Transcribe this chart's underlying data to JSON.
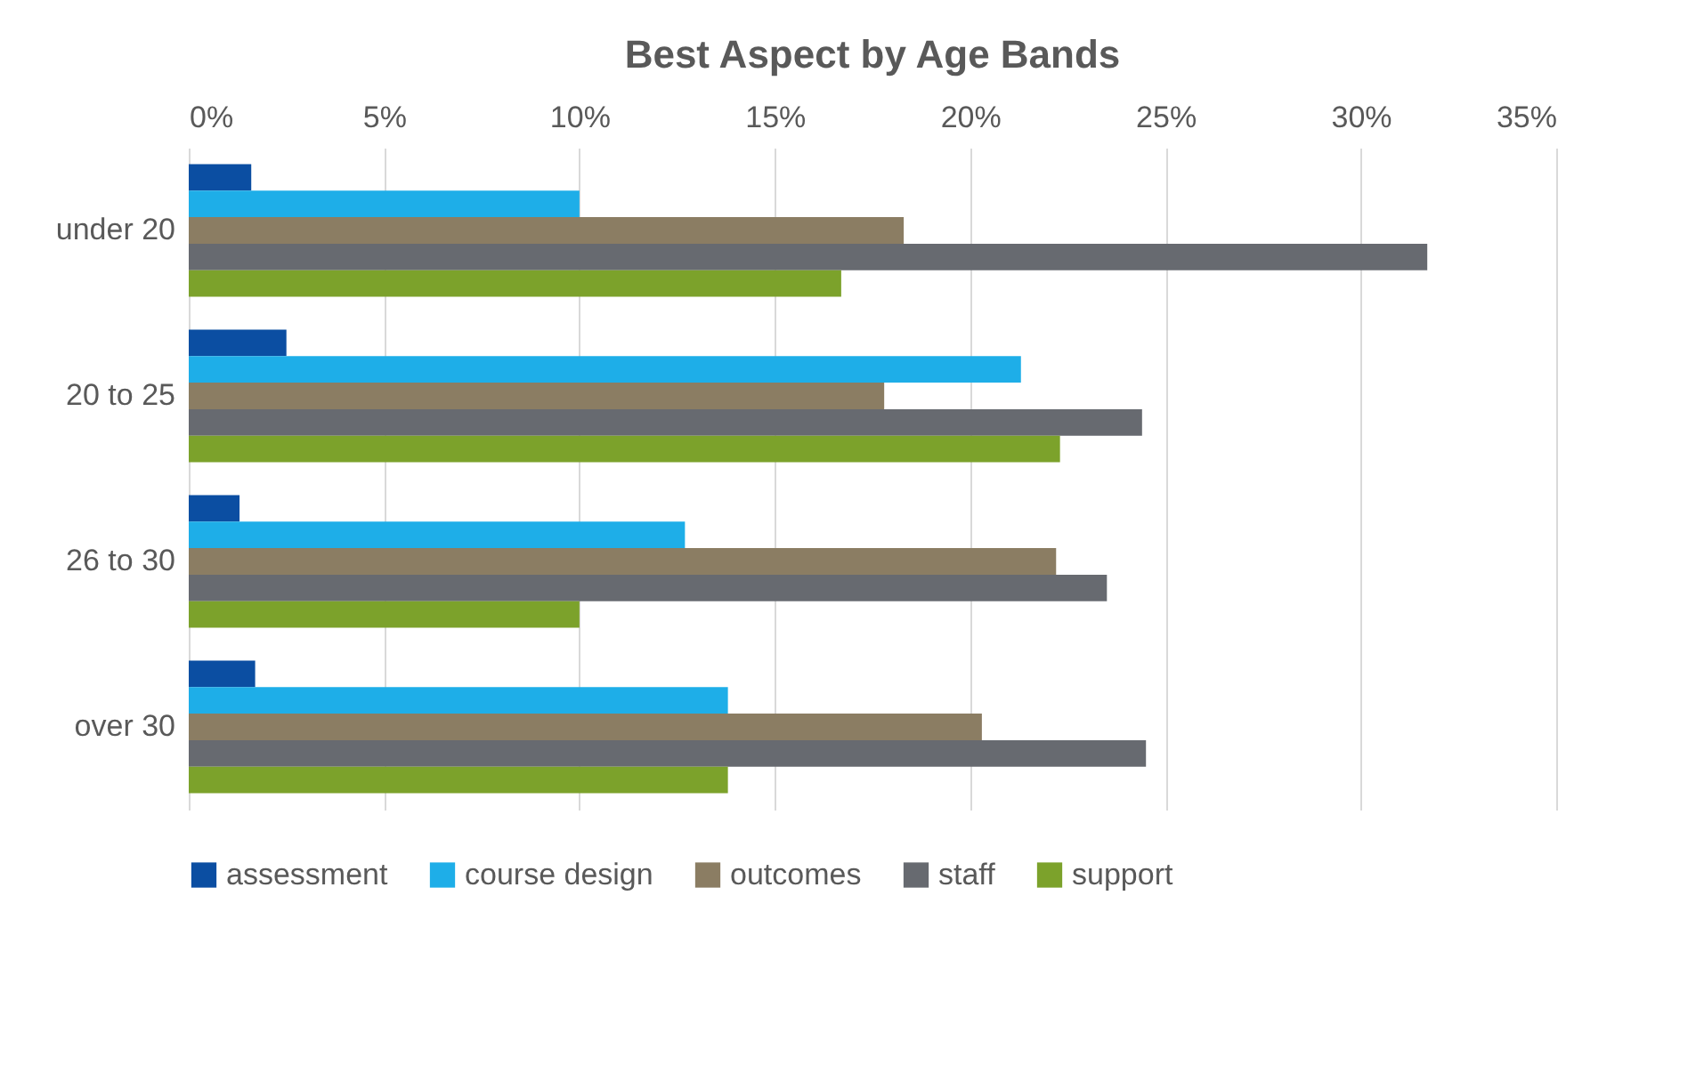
{
  "chart_data": {
    "type": "bar",
    "orientation": "horizontal",
    "title": "Best Aspect by Age Bands",
    "categories": [
      "under 20",
      "20 to 25",
      "26 to 30",
      "over 30"
    ],
    "series": [
      {
        "name": "assessment",
        "color": "#0b4ea2",
        "values": [
          1.6,
          2.5,
          1.3,
          1.7
        ]
      },
      {
        "name": "course design",
        "color": "#1eaee8",
        "values": [
          10.0,
          21.3,
          12.7,
          13.8
        ]
      },
      {
        "name": "outcomes",
        "color": "#8b7d63",
        "values": [
          18.3,
          17.8,
          22.2,
          20.3
        ]
      },
      {
        "name": "staff",
        "color": "#676a70",
        "values": [
          31.7,
          24.4,
          23.5,
          24.5
        ]
      },
      {
        "name": "support",
        "color": "#7ca22b",
        "values": [
          16.7,
          22.3,
          10.0,
          13.8
        ]
      }
    ],
    "xlim": [
      0,
      35
    ],
    "xticks": [
      {
        "value": 0,
        "label": "0%"
      },
      {
        "value": 5,
        "label": "5%"
      },
      {
        "value": 10,
        "label": "10%"
      },
      {
        "value": 15,
        "label": "15%"
      },
      {
        "value": 20,
        "label": "20%"
      },
      {
        "value": 25,
        "label": "25%"
      },
      {
        "value": 30,
        "label": "30%"
      },
      {
        "value": 35,
        "label": "35%"
      }
    ],
    "grid": "x",
    "legend": "bottom"
  }
}
